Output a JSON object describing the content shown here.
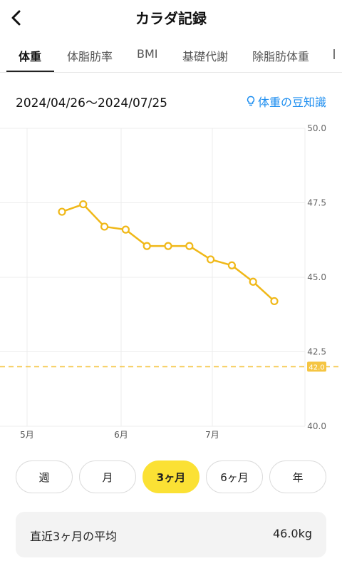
{
  "header": {
    "title": "カラダ記録"
  },
  "tabs": [
    {
      "label": "体重"
    },
    {
      "label": "体脂肪率"
    },
    {
      "label": "BMI"
    },
    {
      "label": "基礎代謝"
    },
    {
      "label": "除脂肪体重"
    }
  ],
  "range": {
    "text": "2024/04/26〜2024/07/25",
    "tips_label": "体重の豆知識"
  },
  "chart_data": {
    "type": "line",
    "yticks": [
      "50.0",
      "47.5",
      "45.0",
      "42.5",
      "40.0"
    ],
    "ylim": [
      40.0,
      50.0
    ],
    "xticks": [
      "5月",
      "6月",
      "7月"
    ],
    "target_value": 42.0,
    "target_label": "42.0",
    "grid": true,
    "series": [
      {
        "values": [
          47.2,
          47.45,
          46.7,
          46.6,
          46.05,
          46.05,
          46.05,
          45.6,
          45.4,
          44.85,
          44.2
        ]
      }
    ],
    "colors": {
      "line": "#f0b818",
      "target": "#f5c543",
      "grid": "#ececec"
    }
  },
  "periods": [
    {
      "label": "週"
    },
    {
      "label": "月"
    },
    {
      "label": "3ヶ月"
    },
    {
      "label": "6ヶ月"
    },
    {
      "label": "年"
    }
  ],
  "average": {
    "label": "直近3ヶ月の平均",
    "value": "46.0kg"
  }
}
